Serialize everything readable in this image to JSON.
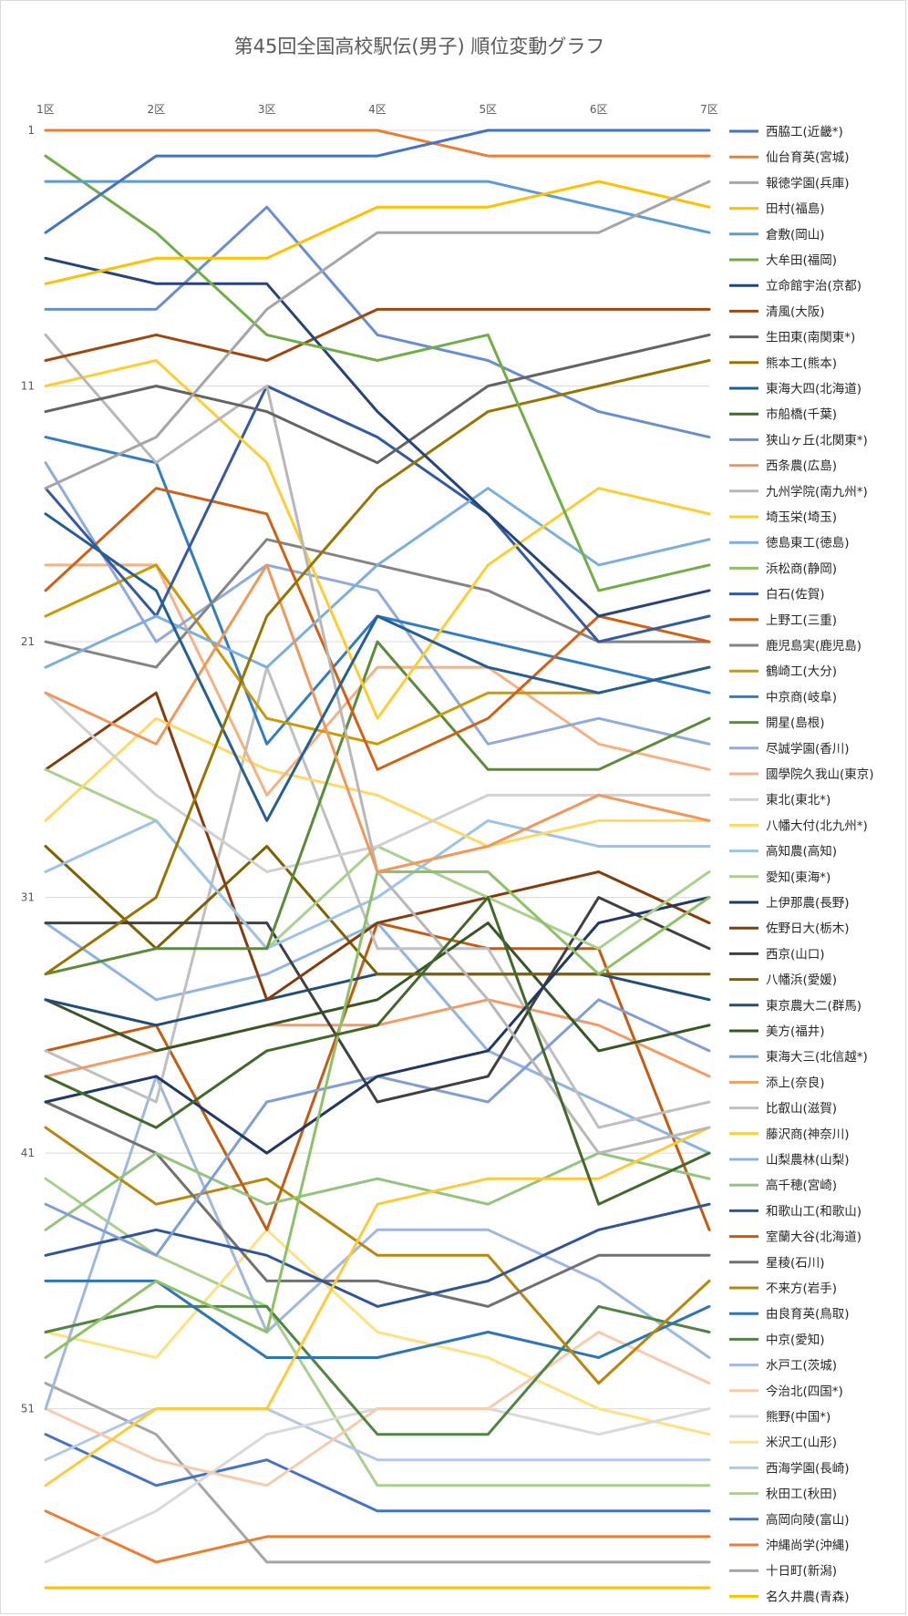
{
  "chart_data": {
    "type": "line",
    "title": "第45回全国高校駅伝(男子) 順位変動グラフ",
    "categories": [
      "1区",
      "2区",
      "3区",
      "4区",
      "5区",
      "6区",
      "7区"
    ],
    "y_ticks": [
      "1",
      "11",
      "21",
      "31",
      "41",
      "51"
    ],
    "ylim": [
      1,
      58
    ],
    "y_reversed": true,
    "grid": true,
    "legend_position": "right",
    "series": [
      {
        "name": "西脇工(近畿*)",
        "color": "#4472C4",
        "values": [
          5,
          2,
          2,
          2,
          1,
          1,
          1
        ]
      },
      {
        "name": "仙台育英(宮城)",
        "color": "#ED7D31",
        "values": [
          1,
          1,
          1,
          1,
          2,
          2,
          2
        ]
      },
      {
        "name": "報徳学園(兵庫)",
        "color": "#A5A5A5",
        "values": [
          15,
          13,
          8,
          5,
          5,
          5,
          3
        ]
      },
      {
        "name": "田村(福島)",
        "color": "#FFC000",
        "values": [
          7,
          6,
          6,
          4,
          4,
          3,
          4
        ]
      },
      {
        "name": "倉敷(岡山)",
        "color": "#5B9BD5",
        "values": [
          3,
          3,
          3,
          3,
          3,
          4,
          5
        ]
      },
      {
        "name": "大牟田(福岡)",
        "color": "#70AD47",
        "values": [
          2,
          5,
          9,
          10,
          9,
          19,
          18
        ]
      },
      {
        "name": "立命館宇治(京都)",
        "color": "#264478",
        "values": [
          6,
          7,
          7,
          12,
          16,
          20,
          19
        ]
      },
      {
        "name": "清風(大阪)",
        "color": "#9E480E",
        "values": [
          10,
          9,
          10,
          8,
          8,
          8,
          8
        ]
      },
      {
        "name": "生田東(南関東*)",
        "color": "#636363",
        "values": [
          12,
          11,
          12,
          14,
          11,
          10,
          9
        ]
      },
      {
        "name": "熊本工(熊本)",
        "color": "#997300",
        "values": [
          34,
          31,
          20,
          15,
          12,
          11,
          10
        ]
      },
      {
        "name": "東海大四(北海道)",
        "color": "#255E91",
        "values": [
          16,
          19,
          28,
          20,
          22,
          23,
          22
        ]
      },
      {
        "name": "市船橋(千葉)",
        "color": "#43682B",
        "values": [
          38,
          40,
          37,
          36,
          31,
          43,
          41
        ]
      },
      {
        "name": "狭山ヶ丘(北関東*)",
        "color": "#698ED0",
        "values": [
          8,
          8,
          4,
          9,
          10,
          12,
          13
        ]
      },
      {
        "name": "西条農(広島)",
        "color": "#F1975A",
        "values": [
          23,
          25,
          18,
          30,
          29,
          27,
          28
        ]
      },
      {
        "name": "九州学院(南九州*)",
        "color": "#B7B7B7",
        "values": [
          9,
          14,
          11,
          30,
          35,
          41,
          40
        ]
      },
      {
        "name": "埼玉栄(埼玉)",
        "color": "#FFCD33",
        "values": [
          11,
          10,
          14,
          24,
          18,
          15,
          16
        ]
      },
      {
        "name": "徳島東工(徳島)",
        "color": "#7CAFDD",
        "values": [
          22,
          20,
          22,
          18,
          15,
          18,
          17
        ]
      },
      {
        "name": "浜松商(静岡)",
        "color": "#8CC168",
        "values": [
          49,
          46,
          48,
          30,
          30,
          34,
          31
        ]
      },
      {
        "name": "白石(佐賀)",
        "color": "#335AA1",
        "values": [
          15,
          20,
          11,
          13,
          16,
          21,
          20
        ]
      },
      {
        "name": "上野工(三重)",
        "color": "#D26012",
        "values": [
          19,
          15,
          16,
          26,
          24,
          20,
          21
        ]
      },
      {
        "name": "鹿児島実(鹿児島)",
        "color": "#848484",
        "values": [
          21,
          22,
          17,
          18,
          19,
          21,
          21
        ]
      },
      {
        "name": "鶴崎工(大分)",
        "color": "#CC9A00",
        "values": [
          20,
          18,
          24,
          25,
          23,
          23,
          22
        ]
      },
      {
        "name": "中京商(岐阜)",
        "color": "#327DC2",
        "values": [
          13,
          14,
          25,
          20,
          21,
          22,
          23
        ]
      },
      {
        "name": "開星(島根)",
        "color": "#5A8B39",
        "values": [
          34,
          33,
          33,
          21,
          26,
          26,
          24
        ]
      },
      {
        "name": "尽誠学園(香川)",
        "color": "#8FAADC",
        "values": [
          14,
          21,
          18,
          19,
          25,
          24,
          25
        ]
      },
      {
        "name": "國學院久我山(東京)",
        "color": "#F4B183",
        "values": [
          18,
          18,
          27,
          22,
          22,
          25,
          26
        ]
      },
      {
        "name": "東北(東北*)",
        "color": "#D0D0D0",
        "values": [
          23,
          27,
          30,
          29,
          27,
          27,
          27
        ]
      },
      {
        "name": "八幡大付(北九州*)",
        "color": "#FFD966",
        "values": [
          28,
          24,
          26,
          27,
          29,
          28,
          28
        ]
      },
      {
        "name": "高知農(高知)",
        "color": "#9DC3E6",
        "values": [
          30,
          28,
          33,
          31,
          28,
          29,
          29
        ]
      },
      {
        "name": "愛知(東海*)",
        "color": "#A9D18E",
        "values": [
          26,
          28,
          33,
          29,
          31,
          33,
          30
        ]
      },
      {
        "name": "上伊那農(長野)",
        "color": "#1F3864",
        "values": [
          39,
          38,
          41,
          38,
          37,
          32,
          31
        ]
      },
      {
        "name": "佐野日大(栃木)",
        "color": "#843C0C",
        "values": [
          26,
          23,
          35,
          32,
          31,
          30,
          32
        ]
      },
      {
        "name": "西京(山口)",
        "color": "#404040",
        "values": [
          32,
          32,
          32,
          39,
          38,
          31,
          33
        ]
      },
      {
        "name": "八幡浜(愛媛)",
        "color": "#7F6000",
        "values": [
          29,
          33,
          29,
          34,
          34,
          34,
          34
        ]
      },
      {
        "name": "東京農大二(群馬)",
        "color": "#1F4E79",
        "values": [
          35,
          36,
          35,
          34,
          34,
          34,
          35
        ]
      },
      {
        "name": "美方(福井)",
        "color": "#375623",
        "values": [
          35,
          37,
          36,
          35,
          32,
          37,
          36
        ]
      },
      {
        "name": "東海大三(北信越*)",
        "color": "#7F9FD4",
        "values": [
          43,
          45,
          39,
          38,
          39,
          35,
          37
        ]
      },
      {
        "name": "添上(奈良)",
        "color": "#F39A65",
        "values": [
          38,
          37,
          36,
          36,
          35,
          36,
          38
        ]
      },
      {
        "name": "比叡山(滋賀)",
        "color": "#BFBFBF",
        "values": [
          37,
          39,
          22,
          33,
          33,
          40,
          39
        ]
      },
      {
        "name": "藤沢商(神奈川)",
        "color": "#FFC93C",
        "values": [
          54,
          51,
          51,
          43,
          42,
          42,
          40
        ]
      },
      {
        "name": "山梨農林(山梨)",
        "color": "#8EB4E3",
        "values": [
          32,
          35,
          34,
          32,
          37,
          39,
          41
        ]
      },
      {
        "name": "高千穂(宮崎)",
        "color": "#93C47D",
        "values": [
          44,
          41,
          43,
          42,
          43,
          41,
          42
        ]
      },
      {
        "name": "和歌山工(和歌山)",
        "color": "#2F5597",
        "values": [
          45,
          44,
          45,
          47,
          46,
          44,
          43
        ]
      },
      {
        "name": "室蘭大谷(北海道)",
        "color": "#C55A11",
        "values": [
          37,
          36,
          44,
          32,
          33,
          33,
          44
        ]
      },
      {
        "name": "星稜(石川)",
        "color": "#707070",
        "values": [
          39,
          41,
          46,
          46,
          47,
          45,
          45
        ]
      },
      {
        "name": "不来方(岩手)",
        "color": "#B8860B",
        "values": [
          40,
          43,
          42,
          45,
          45,
          50,
          46
        ]
      },
      {
        "name": "由良育英(鳥取)",
        "color": "#2E75B6",
        "values": [
          46,
          46,
          49,
          49,
          48,
          49,
          47
        ]
      },
      {
        "name": "中京(愛知)",
        "color": "#4E8542",
        "values": [
          48,
          47,
          47,
          52,
          52,
          47,
          48
        ]
      },
      {
        "name": "水戸工(茨城)",
        "color": "#A0B7E0",
        "values": [
          51,
          38,
          48,
          44,
          44,
          46,
          49
        ]
      },
      {
        "name": "今治北(四国*)",
        "color": "#F8CBAD",
        "values": [
          51,
          53,
          54,
          51,
          51,
          48,
          50
        ]
      },
      {
        "name": "熊野(中国*)",
        "color": "#D9D9D9",
        "values": [
          57,
          55,
          52,
          51,
          51,
          52,
          51
        ]
      },
      {
        "name": "米沢工(山形)",
        "color": "#FFE082",
        "values": [
          48,
          49,
          44,
          48,
          49,
          51,
          52
        ]
      },
      {
        "name": "西海学園(長崎)",
        "color": "#B4C7E7",
        "values": [
          53,
          51,
          51,
          53,
          53,
          53,
          53
        ]
      },
      {
        "name": "秋田工(秋田)",
        "color": "#A8D08D",
        "values": [
          42,
          45,
          47,
          54,
          54,
          54,
          54
        ]
      },
      {
        "name": "高岡向陵(富山)",
        "color": "#4472C4",
        "values": [
          52,
          54,
          53,
          55,
          55,
          55,
          55
        ]
      },
      {
        "name": "沖縄尚学(沖縄)",
        "color": "#ED7D31",
        "values": [
          55,
          57,
          56,
          56,
          56,
          56,
          56
        ]
      },
      {
        "name": "十日町(新潟)",
        "color": "#A5A5A5",
        "values": [
          50,
          52,
          57,
          57,
          57,
          57,
          57
        ]
      },
      {
        "name": "名久井農(青森)",
        "color": "#FFC000",
        "values": [
          58,
          58,
          58,
          58,
          58,
          58,
          58
        ]
      }
    ]
  }
}
